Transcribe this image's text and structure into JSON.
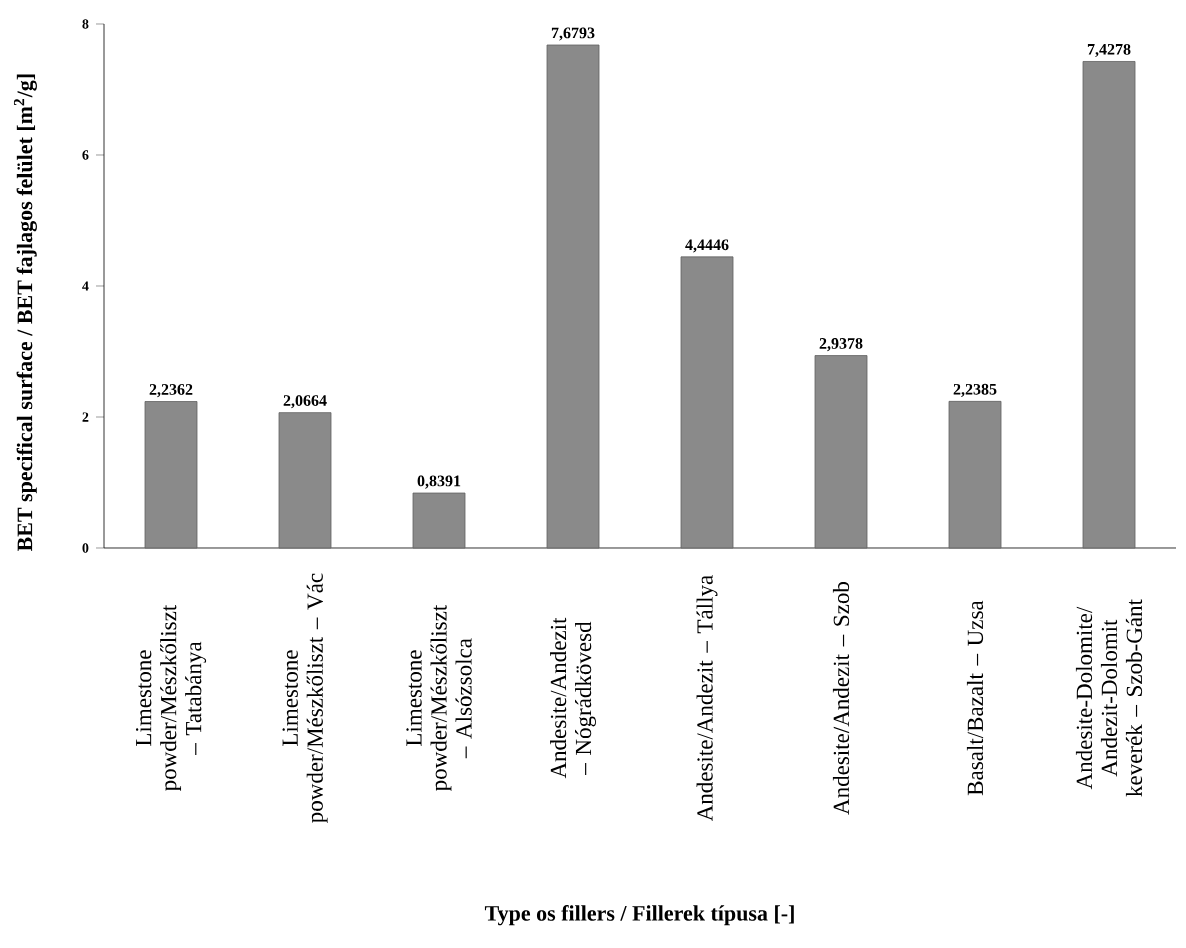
{
  "chart_data": {
    "type": "bar",
    "xlabel": "Type os fillers / Fillerek típusa [-]",
    "ylabel": "BET specifical surface / BET fajlagos felület [m$^{2}$/g]",
    "categories": [
      "Limestone powder/Mészkőliszt – Tatabánya",
      "Limestone powder/Mészkőliszt – Vác",
      "Limestone powder/Mészkőliszt – Alsózsolca",
      "Andesite/Andezit – Nógrádkövesd",
      "Andesite/Andezit – Tállya",
      "Andesite/Andezit – Szob",
      "Basalt/Bazalt – Uzsa",
      "Andesite-Dolomite/ Andezit-Dolomit keverék – Szob-Gánt"
    ],
    "values": [
      2.2362,
      2.0664,
      0.8391,
      7.6793,
      4.4446,
      2.9378,
      2.2385,
      7.4278
    ],
    "value_labels": [
      "2,2362",
      "2,0664",
      "0,8391",
      "7,6793",
      "4,4446",
      "2,9378",
      "2,2385",
      "7,4278"
    ],
    "color": "#8a8a8a",
    "ylim": [
      0,
      8
    ],
    "yticks": [
      0,
      2,
      4,
      6,
      8
    ],
    "grid": false
  }
}
